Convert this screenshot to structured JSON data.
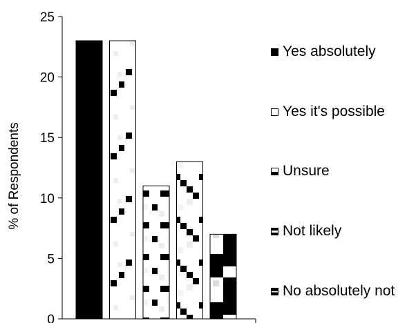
{
  "chart_data": {
    "type": "bar",
    "categories": [
      "Yes absolutely",
      "Yes it's possible",
      "Unsure",
      "Not likely",
      "No absolutely not"
    ],
    "values": [
      23,
      23,
      11,
      13,
      7
    ],
    "title": "",
    "xlabel": "",
    "ylabel": "% of Respondents",
    "ylim": [
      0,
      25
    ],
    "yticks": [
      0,
      5,
      10,
      15,
      20,
      25
    ],
    "grid": false,
    "legend_position": "right",
    "colors": [
      "#000000",
      "#ffffff",
      "#ffffff",
      "#ffffff",
      "#000000"
    ]
  },
  "legend": {
    "items": [
      "Yes absolutely",
      "Yes it's possible",
      "Unsure",
      "Not likely",
      "No absolutely not"
    ]
  }
}
